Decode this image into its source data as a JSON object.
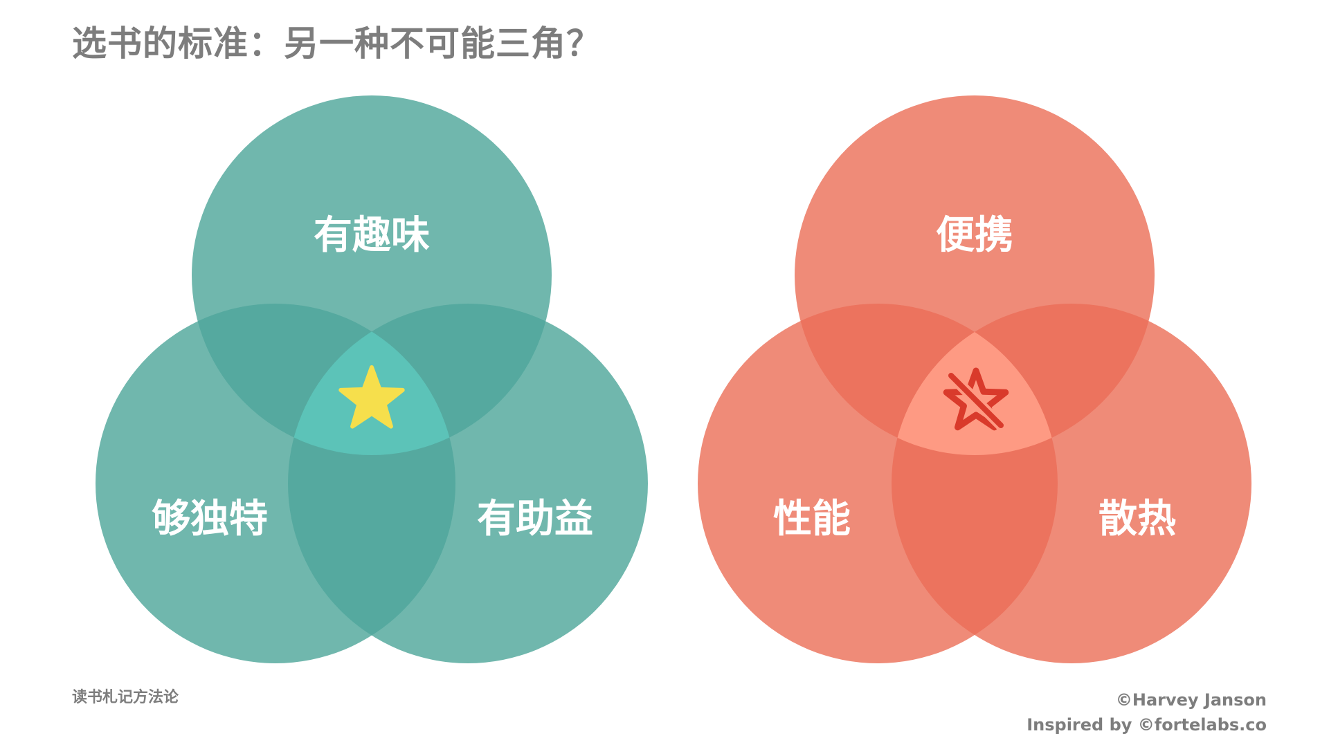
{
  "title": "选书的标准：另一种不可能三角？",
  "venn_left": {
    "labels": [
      "有趣味",
      "够独特",
      "有助益"
    ],
    "center_icon": "star-icon",
    "colors": {
      "circle": "#70b7ad",
      "overlap": "#55a99f",
      "center": "#5cc3b8",
      "star": "#f6df4c"
    }
  },
  "venn_right": {
    "labels": [
      "便携",
      "性能",
      "散热"
    ],
    "center_icon": "star-crossed-out-icon",
    "colors": {
      "circle": "#ef8b78",
      "overlap": "#ec735e",
      "center": "#fe9a83",
      "star": "#d93a2b"
    }
  },
  "footer": {
    "left": "读书札记方法论",
    "credit": "©Harvey Janson",
    "inspired": "Inspired by ©fortelabs.co"
  }
}
